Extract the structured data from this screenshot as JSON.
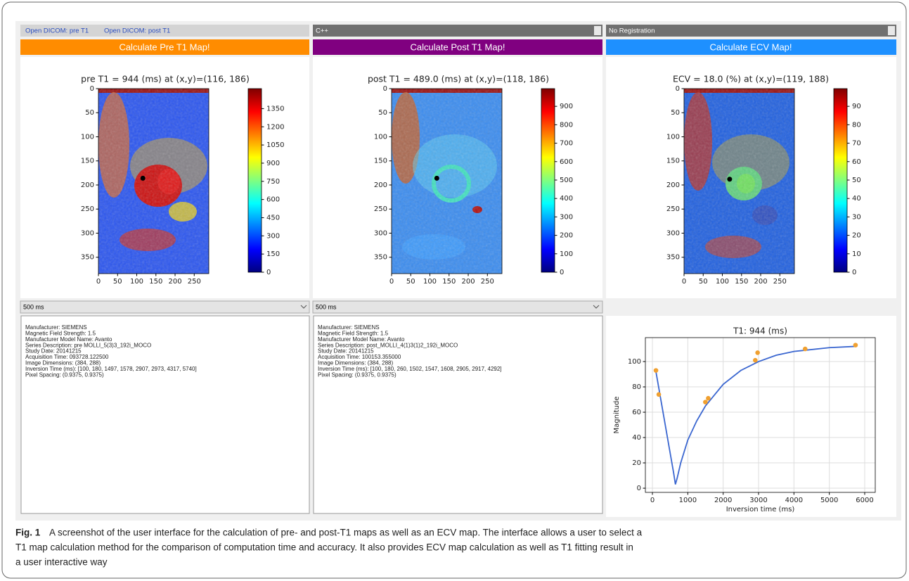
{
  "toolbar": {
    "menu": [
      "Open DICOM: pre T1",
      "Open DICOM: post T1"
    ],
    "method": "C++",
    "registration": "No Registration"
  },
  "buttons": [
    "Calculate Pre T1 Map!",
    "Calculate Post T1 Map!",
    "Calculate ECV Map!"
  ],
  "maps": [
    {
      "title": "pre T1 = 944 (ms) at (x,y)=(116, 186)",
      "xlim": [
        0,
        288
      ],
      "ylim": [
        0,
        384
      ],
      "xticks": [
        0,
        50,
        100,
        150,
        200,
        250
      ],
      "yticks": [
        0,
        50,
        100,
        150,
        200,
        250,
        300,
        350
      ],
      "clim": [
        0,
        1515
      ],
      "cticks": [
        0,
        150,
        300,
        450,
        600,
        750,
        900,
        1050,
        1200,
        1350
      ],
      "point": [
        116,
        186
      ]
    },
    {
      "title": "post T1 = 489.0 (ms) at (x,y)=(118, 186)",
      "xlim": [
        0,
        288
      ],
      "ylim": [
        0,
        384
      ],
      "xticks": [
        0,
        50,
        100,
        150,
        200,
        250
      ],
      "yticks": [
        0,
        50,
        100,
        150,
        200,
        250,
        300,
        350
      ],
      "clim": [
        0,
        996
      ],
      "cticks": [
        0,
        100,
        200,
        300,
        400,
        500,
        600,
        700,
        800,
        900
      ],
      "point": [
        118,
        186
      ]
    },
    {
      "title": "ECV = 18.0 (%) at (x,y)=(119, 188)",
      "xlim": [
        0,
        288
      ],
      "ylim": [
        0,
        384
      ],
      "xticks": [
        0,
        50,
        100,
        150,
        200,
        250
      ],
      "yticks": [
        0,
        50,
        100,
        150,
        200,
        250,
        300,
        350
      ],
      "clim": [
        0,
        99.6
      ],
      "cticks": [
        0,
        10,
        20,
        30,
        40,
        50,
        60,
        70,
        80,
        90
      ],
      "point": [
        119,
        188
      ]
    }
  ],
  "dropdowns": [
    "500 ms",
    "500 ms"
  ],
  "info": [
    [
      "Manufacturer: SIEMENS",
      "Magnetic Field Strength: 1.5",
      "Manufacturer Model Name: Avanto",
      "Series Description: pre MOLLI_5(3)3_192i_MOCO",
      "Study Date: 20141215",
      "Acquisition Time: 093728.122500",
      "Image Dimensions: (384, 288)",
      "Inversion Time (ms): [100, 180, 1497, 1578, 2907, 2973, 4317, 5740]",
      "Pixel Spacing: (0.9375, 0.9375)"
    ],
    [
      "Manufacturer: SIEMENS",
      "Magnetic Field Strength: 1.5",
      "Manufacturer Model Name: Avanto",
      "Series Description: post_MOLLI_4(1)3(1)2_192i_MOCO",
      "Study Date: 20141215",
      "Acquisition Time: 100153.355000",
      "Image Dimensions: (384, 288)",
      "Inversion Time (ms): [100, 180, 260, 1502, 1547, 1608, 2905, 2917, 4292]",
      "Pixel Spacing: (0.9375, 0.9375)"
    ]
  ],
  "chart_data": {
    "type": "scatter",
    "title": "T1: 944 (ms)",
    "x_label": "Inversion time (ms)",
    "y_label": "Magnitude",
    "xlim": [
      -199,
      6298
    ],
    "ylim": [
      -3.3,
      118.9
    ],
    "xticks": [
      0,
      1000,
      2000,
      3000,
      4000,
      5000,
      6000
    ],
    "yticks": [
      0,
      20,
      40,
      60,
      80,
      100
    ],
    "grid": true,
    "points": {
      "color": "#f0a030",
      "x": [
        100,
        180,
        1497,
        1578,
        2907,
        2973,
        4317,
        5740
      ],
      "y": [
        93,
        74,
        68,
        71,
        101,
        107,
        110,
        113
      ]
    },
    "curve": {
      "color": "#3a66d0",
      "x": [
        100,
        200,
        300,
        400,
        500,
        600,
        650,
        700,
        800,
        1000,
        1250,
        1500,
        2000,
        2500,
        3000,
        3500,
        4000,
        5000,
        5740
      ],
      "y": [
        92,
        76,
        60,
        44,
        28,
        12,
        3,
        8,
        20,
        38,
        53,
        65,
        82,
        93,
        100,
        105,
        108,
        111,
        112
      ]
    }
  },
  "caption": {
    "label": "Fig. 1",
    "lines": [
      "A screenshot of the user interface for the calculation of pre- and post-T1 maps as well as an ECV map. The interface allows a user to select a",
      "T1 map calculation method for the comparison of computation time and accuracy. It also provides ECV map calculation as well as T1 fitting result in",
      "a user interactive way"
    ]
  }
}
